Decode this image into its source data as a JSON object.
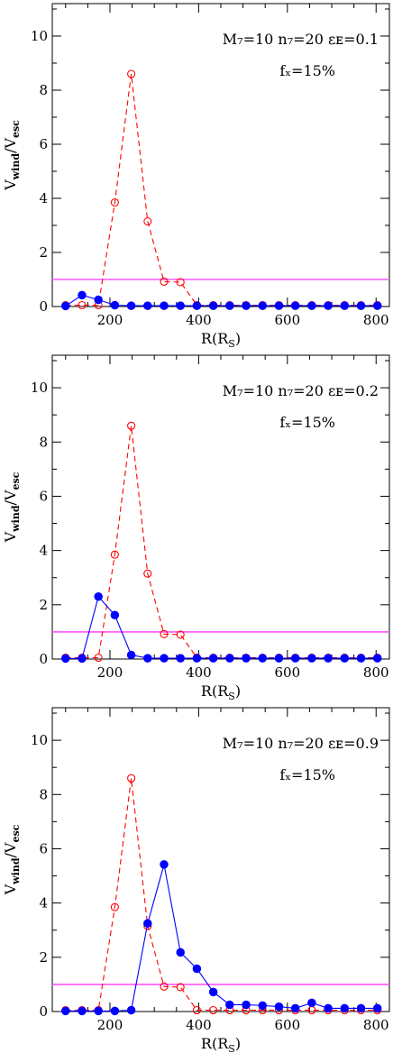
{
  "colors": {
    "blue_series": "#0000ff",
    "red_series": "#ff0000",
    "threshold": "#ff55ff",
    "axes": "#000000"
  },
  "chart_data": [
    {
      "type": "line",
      "panel": "top",
      "annotation_main": "M₇=10  n₇=20  εᴇ=0.1",
      "annotation_fx": "fₓ=15%",
      "xlabel": "R(Rₛ)",
      "ylabel": "V_wind/V_esc",
      "xlim": [
        70,
        830
      ],
      "ylim": [
        0,
        11.2
      ],
      "xticks": [
        200,
        400,
        600,
        800
      ],
      "yticks": [
        0,
        2,
        4,
        6,
        8,
        10
      ],
      "threshold": 1.0,
      "x": [
        100,
        137,
        174,
        211,
        248,
        285,
        322,
        359,
        396,
        433,
        470,
        507,
        544,
        581,
        618,
        655,
        692,
        729,
        766,
        803
      ],
      "series": [
        {
          "style": "solid-filled",
          "values": [
            0.02,
            0.42,
            0.25,
            0.05,
            0.03,
            0.03,
            0.03,
            0.03,
            0.03,
            0.03,
            0.03,
            0.03,
            0.03,
            0.03,
            0.03,
            0.03,
            0.03,
            0.03,
            0.03,
            0.03
          ]
        },
        {
          "style": "dashed-open",
          "values": [
            0.05,
            0.05,
            0.05,
            3.85,
            8.6,
            3.15,
            0.92,
            0.9,
            0.05,
            0.05,
            0.05,
            0.05,
            0.05,
            0.05,
            0.05,
            0.05,
            0.05,
            0.05,
            0.05,
            0.05
          ]
        }
      ]
    },
    {
      "type": "line",
      "panel": "middle",
      "annotation_main": "M₇=10  n₇=20  εᴇ=0.2",
      "annotation_fx": "fₓ=15%",
      "xlabel": "R(Rₛ)",
      "ylabel": "V_wind/V_esc",
      "xlim": [
        70,
        830
      ],
      "ylim": [
        0,
        11.2
      ],
      "xticks": [
        200,
        400,
        600,
        800
      ],
      "yticks": [
        0,
        2,
        4,
        6,
        8,
        10
      ],
      "threshold": 1.0,
      "x": [
        100,
        137,
        174,
        211,
        248,
        285,
        322,
        359,
        396,
        433,
        470,
        507,
        544,
        581,
        618,
        655,
        692,
        729,
        766,
        803
      ],
      "series": [
        {
          "style": "solid-filled",
          "values": [
            0.02,
            0.02,
            2.3,
            1.62,
            0.15,
            0.03,
            0.03,
            0.03,
            0.03,
            0.03,
            0.03,
            0.03,
            0.03,
            0.03,
            0.03,
            0.03,
            0.03,
            0.03,
            0.03,
            0.03
          ]
        },
        {
          "style": "dashed-open",
          "values": [
            0.05,
            0.05,
            0.05,
            3.85,
            8.6,
            3.15,
            0.92,
            0.9,
            0.05,
            0.05,
            0.05,
            0.05,
            0.05,
            0.05,
            0.05,
            0.05,
            0.05,
            0.05,
            0.05,
            0.05
          ]
        }
      ]
    },
    {
      "type": "line",
      "panel": "bottom",
      "annotation_main": "M₇=10  n₇=20  εᴇ=0.9",
      "annotation_fx": "fₓ=15%",
      "xlabel": "R(Rₛ)",
      "ylabel": "V_wind/V_esc",
      "xlim": [
        70,
        830
      ],
      "ylim": [
        0,
        11.2
      ],
      "xticks": [
        200,
        400,
        600,
        800
      ],
      "yticks": [
        0,
        2,
        4,
        6,
        8,
        10
      ],
      "threshold": 1.0,
      "x": [
        100,
        137,
        174,
        211,
        248,
        285,
        322,
        359,
        396,
        433,
        470,
        507,
        544,
        581,
        618,
        655,
        692,
        729,
        766,
        803
      ],
      "series": [
        {
          "style": "solid-filled",
          "values": [
            0.02,
            0.02,
            0.02,
            0.02,
            0.05,
            3.25,
            5.42,
            2.18,
            1.58,
            0.72,
            0.25,
            0.25,
            0.22,
            0.18,
            0.12,
            0.32,
            0.12,
            0.12,
            0.12,
            0.12
          ]
        },
        {
          "style": "dashed-open",
          "values": [
            0.05,
            0.05,
            0.05,
            3.85,
            8.6,
            3.15,
            0.92,
            0.9,
            0.05,
            0.05,
            0.05,
            0.05,
            0.05,
            0.05,
            0.05,
            0.05,
            0.05,
            0.05,
            0.05,
            0.05
          ]
        }
      ]
    }
  ]
}
